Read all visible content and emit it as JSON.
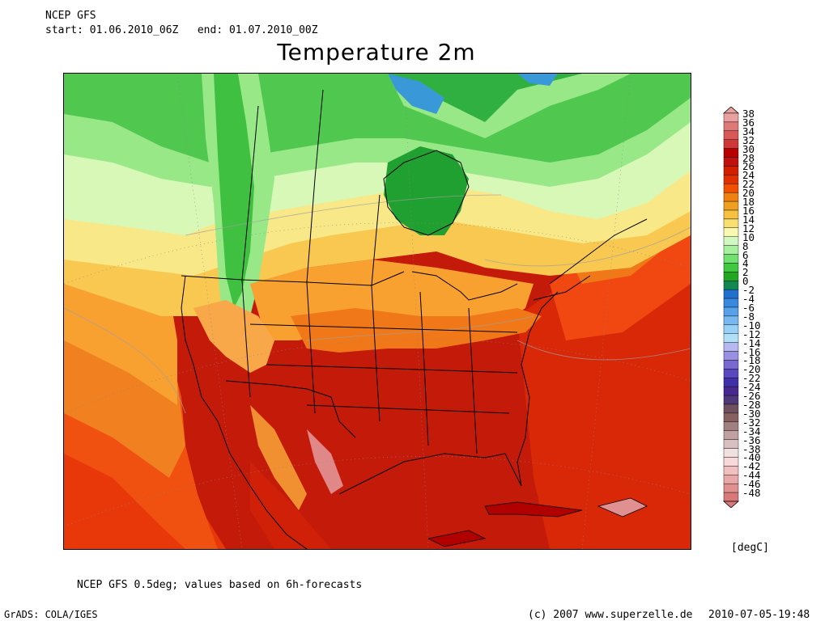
{
  "header": {
    "model": "NCEP GFS",
    "period": "start: 01.06.2010_06Z   end: 01.07.2010_00Z"
  },
  "title": "Temperature 2m",
  "colorbar": {
    "unit": "[degC]",
    "labels": [
      "38",
      "36",
      "34",
      "32",
      "30",
      "28",
      "26",
      "24",
      "22",
      "20",
      "18",
      "16",
      "14",
      "12",
      "10",
      "8",
      "6",
      "4",
      "2",
      "0",
      "-2",
      "-4",
      "-6",
      "-8",
      "-10",
      "-12",
      "-14",
      "-16",
      "-18",
      "-20",
      "-22",
      "-24",
      "-26",
      "-28",
      "-30",
      "-32",
      "-34",
      "-36",
      "-38",
      "-40",
      "-42",
      "-44",
      "-46",
      "-48"
    ],
    "colors": [
      "#e8a0a0",
      "#e07878",
      "#d85858",
      "#d03838",
      "#b80000",
      "#c01010",
      "#d02000",
      "#e03000",
      "#f05000",
      "#f08010",
      "#f0a020",
      "#f8c040",
      "#f8e070",
      "#f8f8b0",
      "#d0f8c0",
      "#a8f0a0",
      "#70e070",
      "#40c840",
      "#20a820",
      "#108850",
      "#2070d0",
      "#3888e0",
      "#58a0e8",
      "#78b8f0",
      "#98d0f8",
      "#b0e0f8",
      "#b8b8f0",
      "#9890e0",
      "#7868d0",
      "#5848c0",
      "#4030a8",
      "#482890",
      "#503878",
      "#705060",
      "#886060",
      "#a08080",
      "#c0a0a0",
      "#d8c0c0",
      "#f0e0e0",
      "#f8d8d8",
      "#f0c0c0",
      "#e8a8a8",
      "#e09090",
      "#d87878"
    ]
  },
  "footer": {
    "note": "NCEP GFS 0.5deg; values based on 6h-forecasts",
    "software": "GrADS: COLA/IGES",
    "copyright": "(c) 2007 www.superzelle.de",
    "timestamp": "2010-07-05-19:48"
  },
  "map": {
    "field": "2m temperature",
    "region": "North America"
  }
}
